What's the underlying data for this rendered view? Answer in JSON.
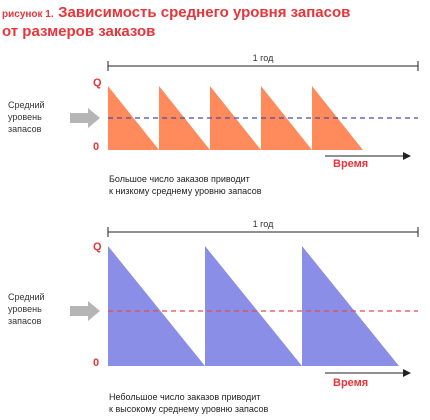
{
  "title": {
    "prefix": "рисунок 1.",
    "text_line1": "Зависимость среднего уровня запасов",
    "text_line2": "от размеров заказов"
  },
  "colors": {
    "title": "#e8343a",
    "panel1_fill": "#ff8a5b",
    "panel2_fill": "#8b8ee6",
    "panel1_avg_line": "#4a4aa8",
    "panel2_avg_line": "#e84a4a",
    "arrow": "#b5b5b5"
  },
  "panels": [
    {
      "year_label": "1 год",
      "axis_top": "Q",
      "axis_bottom": "0",
      "avg_label_lines": [
        "Средний",
        "уровень",
        "запасов"
      ],
      "time_label": "Время",
      "caption_lines": [
        "Большое число заказов приводит",
        "к низкому среднему уровню запасов"
      ],
      "cycles": 5
    },
    {
      "year_label": "1 год",
      "axis_top": "Q",
      "axis_bottom": "0",
      "avg_label_lines": [
        "Средний",
        "уровень",
        "запасов"
      ],
      "time_label": "Время",
      "caption_lines": [
        "Небольшое число заказов приводит",
        "к высокому среднему уровню запасов"
      ],
      "cycles": 3
    }
  ]
}
